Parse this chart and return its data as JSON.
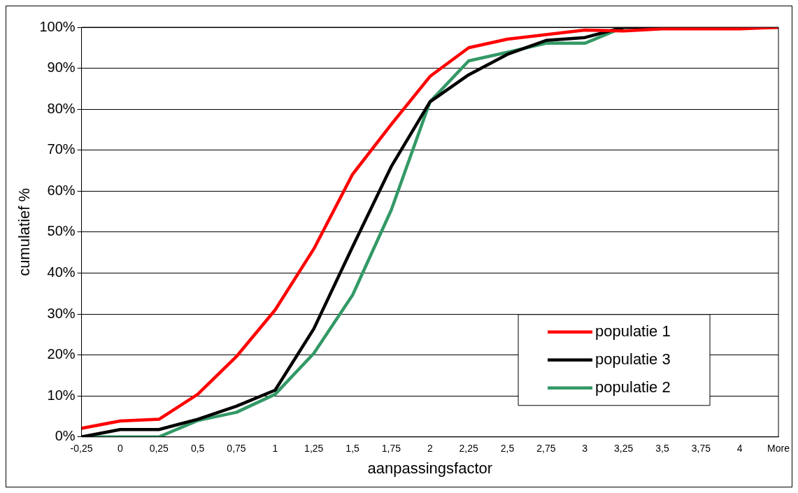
{
  "chart_data": {
    "type": "line",
    "xlabel": "aanpassingsfactor",
    "ylabel": "cumulatief %",
    "categories": [
      "-0,25",
      "0",
      "0,25",
      "0,5",
      "0,75",
      "1",
      "1,25",
      "1,5",
      "1,75",
      "2",
      "2,25",
      "2,5",
      "2,75",
      "3",
      "3,25",
      "3,5",
      "3,75",
      "4",
      "More"
    ],
    "series": [
      {
        "name": "populatie 1",
        "color": "#ff0000",
        "values": [
          2.1,
          3.9,
          4.3,
          10.4,
          19.6,
          31,
          45.9,
          64.1,
          76.3,
          88,
          95,
          97.1,
          98.2,
          99.3,
          99.1,
          99.6,
          99.6,
          99.6,
          100
        ]
      },
      {
        "name": "populatie 3",
        "color": "#000000",
        "values": [
          0,
          1.8,
          1.8,
          4.3,
          7.5,
          11.4,
          26.4,
          46.4,
          66,
          81.8,
          88.4,
          93.4,
          96.8,
          97.5,
          100,
          100,
          100,
          100,
          100
        ]
      },
      {
        "name": "populatie 2",
        "color": "#339966",
        "values": [
          0,
          0,
          0,
          4,
          6,
          10.4,
          20.4,
          34.6,
          55.4,
          81.8,
          91.8,
          93.9,
          96.1,
          96.1,
          100,
          100,
          null,
          null,
          null
        ]
      }
    ],
    "ylim": [
      0,
      100
    ],
    "yticks": [
      {
        "value": 0,
        "label": "0%"
      },
      {
        "value": 10,
        "label": "10%"
      },
      {
        "value": 20,
        "label": "20%"
      },
      {
        "value": 30,
        "label": "30%"
      },
      {
        "value": 40,
        "label": "40%"
      },
      {
        "value": 50,
        "label": "50%"
      },
      {
        "value": 60,
        "label": "60%"
      },
      {
        "value": 70,
        "label": "70%"
      },
      {
        "value": 80,
        "label": "80%"
      },
      {
        "value": 90,
        "label": "90%"
      },
      {
        "value": 100,
        "label": "100%"
      }
    ],
    "grid": "y",
    "legend": "bottom right",
    "marker": "none",
    "line_style": "solid"
  }
}
